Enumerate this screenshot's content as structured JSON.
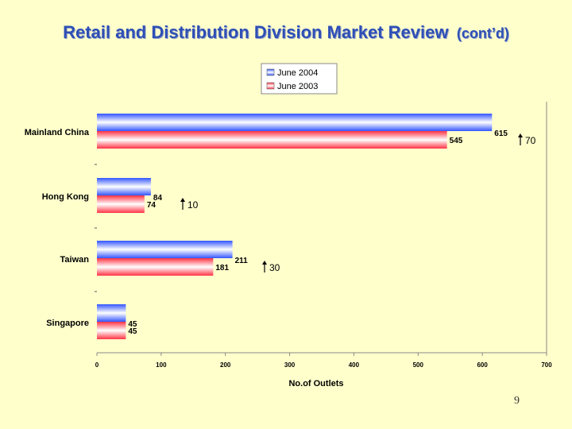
{
  "slide": {
    "title": "Retail and Distribution Division Market Review",
    "title_suffix": "(cont’d)",
    "page_number": "9"
  },
  "chart_data": {
    "type": "bar",
    "orientation": "horizontal",
    "categories": [
      "Mainland China",
      "Hong Kong",
      "Taiwan",
      "Singapore"
    ],
    "series": [
      {
        "name": "June 2004",
        "values": [
          615,
          84,
          211,
          45
        ],
        "color": "#4A6BFF"
      },
      {
        "name": "June 2003",
        "values": [
          545,
          74,
          181,
          45
        ],
        "color": "#FF4A5A"
      }
    ],
    "xlabel": "No.of Outlets",
    "xlim": [
      0,
      700
    ],
    "xticks": [
      0,
      100,
      200,
      300,
      400,
      500,
      600,
      700
    ],
    "legend_position": "top",
    "grid": false,
    "annotations": [
      {
        "category": "Mainland China",
        "text": "70"
      },
      {
        "category": "Hong Kong",
        "text": "10"
      },
      {
        "category": "Taiwan",
        "text": "30"
      }
    ]
  }
}
